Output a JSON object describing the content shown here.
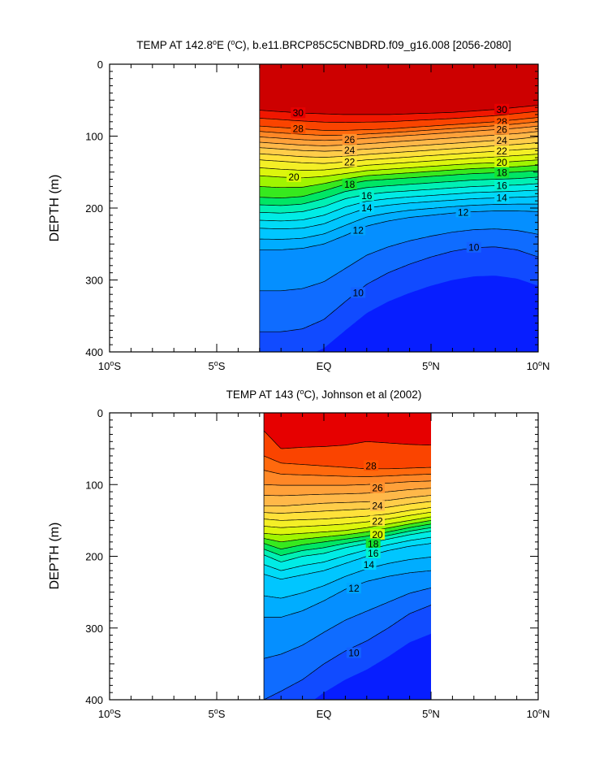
{
  "chart_data": [
    {
      "type": "contour",
      "title": "TEMP AT 142.8°E (°C), b.e11.BRCP85C5CNBDRD.f09_g16.008 [2056-2080]",
      "title_parts": {
        "prefix": "TEMP AT 142.8",
        "deg1": "o",
        "mid": "E (",
        "deg2": "o",
        "suffix": "C), b.e11.BRCP85C5CNBDRD.f09_g16.008 [2056-2080]"
      },
      "xlabel": "",
      "ylabel": "DEPTH (m)",
      "x_range": [
        -10,
        10
      ],
      "y_range": [
        0,
        400
      ],
      "y_inverted": true,
      "data_extent_x": [
        -3,
        10
      ],
      "x_ticks": [
        {
          "value": -10,
          "label": "10",
          "deg": "o",
          "hemi": "S"
        },
        {
          "value": -5,
          "label": "5",
          "deg": "o",
          "hemi": "S"
        },
        {
          "value": 0,
          "label": "EQ",
          "deg": "",
          "hemi": ""
        },
        {
          "value": 5,
          "label": "5",
          "deg": "o",
          "hemi": "N"
        },
        {
          "value": 10,
          "label": "10",
          "deg": "o",
          "hemi": "N"
        }
      ],
      "y_ticks": [
        0,
        100,
        200,
        300,
        400
      ],
      "contour_levels": [
        8,
        9,
        10,
        11,
        12,
        13,
        14,
        15,
        16,
        17,
        18,
        19,
        20,
        21,
        22,
        23,
        24,
        25,
        26,
        27,
        28,
        29,
        30,
        31
      ],
      "isotherm_depths": {
        "x": [
          -3,
          -2,
          -1,
          0,
          1,
          2,
          3,
          4,
          5,
          6,
          7,
          8,
          9,
          10
        ],
        "T30": [
          64,
          66,
          68,
          69,
          70,
          70,
          70,
          69,
          68,
          67,
          65,
          63,
          60,
          57
        ],
        "T28": [
          86,
          88,
          90,
          92,
          92,
          91,
          90,
          88,
          86,
          84,
          82,
          80,
          77,
          74
        ],
        "T26": [
          101,
          103,
          105,
          106,
          105,
          103,
          101,
          99,
          97,
          95,
          93,
          91,
          89,
          86
        ],
        "T24": [
          116,
          118,
          120,
          121,
          120,
          118,
          116,
          114,
          112,
          110,
          108,
          106,
          104,
          101
        ],
        "T22": [
          133,
          135,
          137,
          138,
          136,
          133,
          131,
          129,
          127,
          125,
          123,
          121,
          119,
          117
        ],
        "T20": [
          155,
          157,
          158,
          156,
          152,
          148,
          146,
          144,
          142,
          140,
          138,
          137,
          135,
          133
        ],
        "T18": [
          185,
          186,
          184,
          176,
          167,
          162,
          160,
          158,
          156,
          154,
          152,
          151,
          150,
          148
        ],
        "T16": [
          206,
          207,
          205,
          198,
          187,
          181,
          178,
          176,
          174,
          172,
          170,
          169,
          168,
          166
        ],
        "T14": [
          228,
          229,
          228,
          222,
          210,
          200,
          196,
          193,
          191,
          189,
          187,
          186,
          185,
          184
        ],
        "T12": [
          258,
          258,
          256,
          250,
          238,
          225,
          218,
          213,
          210,
          207,
          205,
          204,
          204,
          205
        ],
        "T10": [
          372,
          372,
          368,
          355,
          330,
          306,
          290,
          278,
          268,
          260,
          255,
          254,
          258,
          268
        ]
      },
      "labels": [
        {
          "value": "30",
          "x": -1.2,
          "y": 68
        },
        {
          "value": "30",
          "x": 8.3,
          "y": 63
        },
        {
          "value": "28",
          "x": -1.2,
          "y": 90
        },
        {
          "value": "28",
          "x": 8.3,
          "y": 80
        },
        {
          "value": "26",
          "x": 1.2,
          "y": 105
        },
        {
          "value": "26",
          "x": 8.3,
          "y": 91
        },
        {
          "value": "24",
          "x": 1.2,
          "y": 120
        },
        {
          "value": "24",
          "x": 8.3,
          "y": 106
        },
        {
          "value": "22",
          "x": 1.2,
          "y": 136
        },
        {
          "value": "22",
          "x": 8.3,
          "y": 121
        },
        {
          "value": "20",
          "x": -1.4,
          "y": 157
        },
        {
          "value": "20",
          "x": 8.3,
          "y": 137
        },
        {
          "value": "18",
          "x": 1.2,
          "y": 167
        },
        {
          "value": "18",
          "x": 8.3,
          "y": 151
        },
        {
          "value": "16",
          "x": 2.0,
          "y": 183
        },
        {
          "value": "16",
          "x": 8.3,
          "y": 169
        },
        {
          "value": "14",
          "x": 2.0,
          "y": 200
        },
        {
          "value": "14",
          "x": 8.3,
          "y": 186
        },
        {
          "value": "12",
          "x": 1.6,
          "y": 231
        },
        {
          "value": "12",
          "x": 6.5,
          "y": 206
        },
        {
          "value": "10",
          "x": 1.6,
          "y": 318
        },
        {
          "value": "10",
          "x": 7.0,
          "y": 255
        }
      ]
    },
    {
      "type": "contour",
      "title": "TEMP AT 143 (°C), Johnson et al (2002)",
      "title_parts": {
        "prefix": "TEMP AT 143 (",
        "deg1": "o",
        "suffix": "C), Johnson et al (2002)"
      },
      "xlabel": "",
      "ylabel": "DEPTH (m)",
      "x_range": [
        -10,
        10
      ],
      "y_range": [
        0,
        400
      ],
      "y_inverted": true,
      "data_extent_x": [
        -2.8,
        5
      ],
      "x_ticks": [
        {
          "value": -10,
          "label": "10",
          "deg": "o",
          "hemi": "S"
        },
        {
          "value": -5,
          "label": "5",
          "deg": "o",
          "hemi": "S"
        },
        {
          "value": 0,
          "label": "EQ",
          "deg": "",
          "hemi": ""
        },
        {
          "value": 5,
          "label": "5",
          "deg": "o",
          "hemi": "N"
        },
        {
          "value": 10,
          "label": "10",
          "deg": "o",
          "hemi": "N"
        }
      ],
      "y_ticks": [
        0,
        100,
        200,
        300,
        400
      ],
      "contour_levels": [
        8,
        9,
        10,
        11,
        12,
        13,
        14,
        15,
        16,
        17,
        18,
        19,
        20,
        21,
        22,
        23,
        24,
        25,
        26,
        27,
        28,
        29
      ],
      "isotherm_depths": {
        "x": [
          -2.8,
          -2,
          -1,
          0,
          1,
          2,
          3,
          4,
          5
        ],
        "T29": [
          25,
          50,
          48,
          47,
          45,
          40,
          42,
          44,
          45
        ],
        "T28": [
          60,
          70,
          72,
          74,
          76,
          78,
          78,
          77,
          76
        ],
        "T26": [
          100,
          101,
          101,
          101,
          101,
          100,
          98,
          96,
          95
        ],
        "T24": [
          130,
          130,
          128,
          126,
          125,
          124,
          122,
          118,
          115
        ],
        "T22": [
          148,
          150,
          149,
          148,
          146,
          144,
          141,
          136,
          132
        ],
        "T20": [
          168,
          170,
          168,
          166,
          164,
          160,
          155,
          150,
          145
        ],
        "T18": [
          182,
          190,
          184,
          180,
          176,
          172,
          166,
          160,
          155
        ],
        "T16": [
          198,
          208,
          200,
          196,
          188,
          182,
          176,
          170,
          165
        ],
        "T14": [
          225,
          232,
          226,
          220,
          210,
          200,
          192,
          186,
          182
        ],
        "T12": [
          285,
          285,
          276,
          262,
          246,
          235,
          228,
          223,
          220
        ],
        "T10": [
          400,
          388,
          372,
          350,
          332,
          318,
          300,
          280,
          268
        ]
      },
      "labels": [
        {
          "value": "28",
          "x": 2.2,
          "y": 74
        },
        {
          "value": "26",
          "x": 2.5,
          "y": 105
        },
        {
          "value": "24",
          "x": 2.5,
          "y": 130
        },
        {
          "value": "22",
          "x": 2.5,
          "y": 151
        },
        {
          "value": "20",
          "x": 2.5,
          "y": 170
        },
        {
          "value": "18",
          "x": 2.3,
          "y": 183
        },
        {
          "value": "16",
          "x": 2.3,
          "y": 196
        },
        {
          "value": "14",
          "x": 2.1,
          "y": 212
        },
        {
          "value": "12",
          "x": 1.4,
          "y": 245
        },
        {
          "value": "10",
          "x": 1.4,
          "y": 335
        }
      ]
    }
  ]
}
